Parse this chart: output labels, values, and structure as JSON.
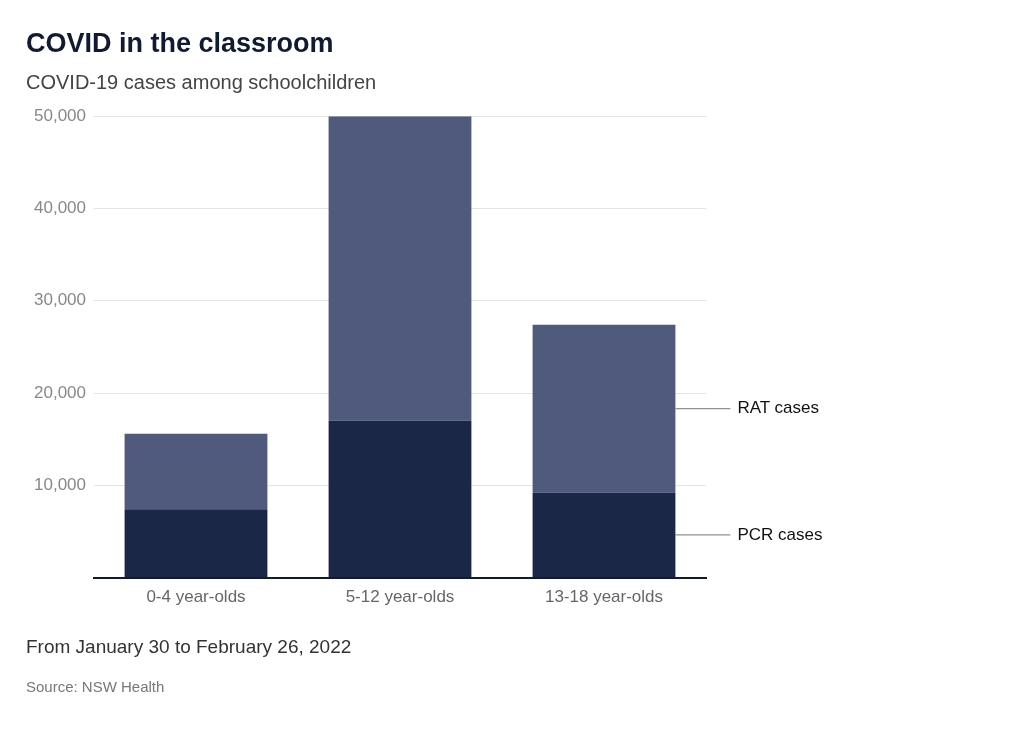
{
  "chart_data": {
    "type": "bar",
    "title": "COVID in the classroom",
    "subtitle": "COVID-19 cases among schoolchildren",
    "categories": [
      "0-4 year-olds",
      "5-12 year-olds",
      "13-18 year-olds"
    ],
    "series": [
      {
        "name": "PCR cases",
        "color": "#1b2747",
        "values": [
          7400,
          17000,
          9200
        ]
      },
      {
        "name": "RAT cases",
        "color": "#4f5a7c",
        "values": [
          8200,
          33000,
          18200
        ]
      }
    ],
    "stacked": true,
    "ylim": [
      0,
      50000
    ],
    "yticks": [
      {
        "value": 0,
        "label": null
      },
      {
        "value": 10000,
        "label": "10,000"
      },
      {
        "value": 20000,
        "label": "20,000"
      },
      {
        "value": 30000,
        "label": "30,000"
      },
      {
        "value": 40000,
        "label": "40,000"
      },
      {
        "value": 50000,
        "label": "50,000"
      }
    ],
    "grid": "y",
    "annotations": [
      "From January 30 to February 26, 2022",
      "Source: NSW Health"
    ]
  }
}
